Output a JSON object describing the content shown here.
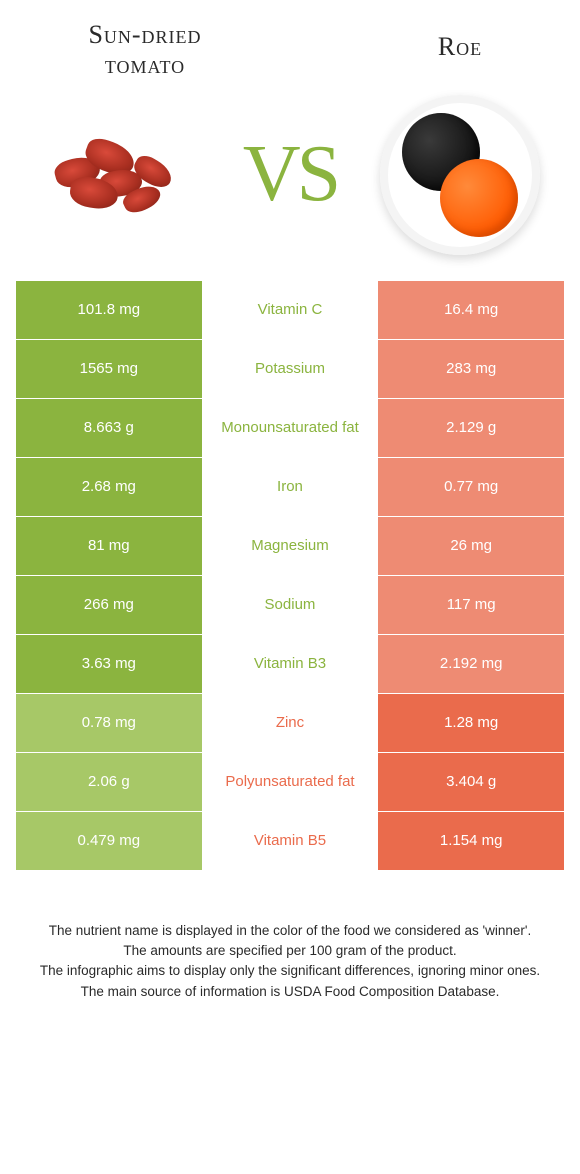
{
  "header": {
    "left_title": "Sun-dried tomato",
    "right_title": "Roe",
    "vs_text": "VS"
  },
  "colors": {
    "left_full": "#8bb43f",
    "left_light": "#a7c867",
    "right_full": "#ea6b4c",
    "right_light": "#ee8b73",
    "mid_left_text": "#8bb43f",
    "mid_right_text": "#ea6b4c",
    "vs_color": "#8bb43f"
  },
  "rows": [
    {
      "nutrient": "Vitamin C",
      "left": "101.8 mg",
      "right": "16.4 mg",
      "winner": "left"
    },
    {
      "nutrient": "Potassium",
      "left": "1565 mg",
      "right": "283 mg",
      "winner": "left"
    },
    {
      "nutrient": "Monounsaturated fat",
      "left": "8.663 g",
      "right": "2.129 g",
      "winner": "left"
    },
    {
      "nutrient": "Iron",
      "left": "2.68 mg",
      "right": "0.77 mg",
      "winner": "left"
    },
    {
      "nutrient": "Magnesium",
      "left": "81 mg",
      "right": "26 mg",
      "winner": "left"
    },
    {
      "nutrient": "Sodium",
      "left": "266 mg",
      "right": "117 mg",
      "winner": "left"
    },
    {
      "nutrient": "Vitamin B3",
      "left": "3.63 mg",
      "right": "2.192 mg",
      "winner": "left"
    },
    {
      "nutrient": "Zinc",
      "left": "0.78 mg",
      "right": "1.28 mg",
      "winner": "right"
    },
    {
      "nutrient": "Polyunsaturated fat",
      "left": "2.06 g",
      "right": "3.404 g",
      "winner": "right"
    },
    {
      "nutrient": "Vitamin B5",
      "left": "0.479 mg",
      "right": "1.154 mg",
      "winner": "right"
    }
  ],
  "footnotes": [
    "The nutrient name is displayed in the color of the food we considered as 'winner'.",
    "The amounts are specified per 100 gram of the product.",
    "The infographic aims to display only the significant differences, ignoring minor ones.",
    "The main source of information is USDA Food Composition Database."
  ]
}
